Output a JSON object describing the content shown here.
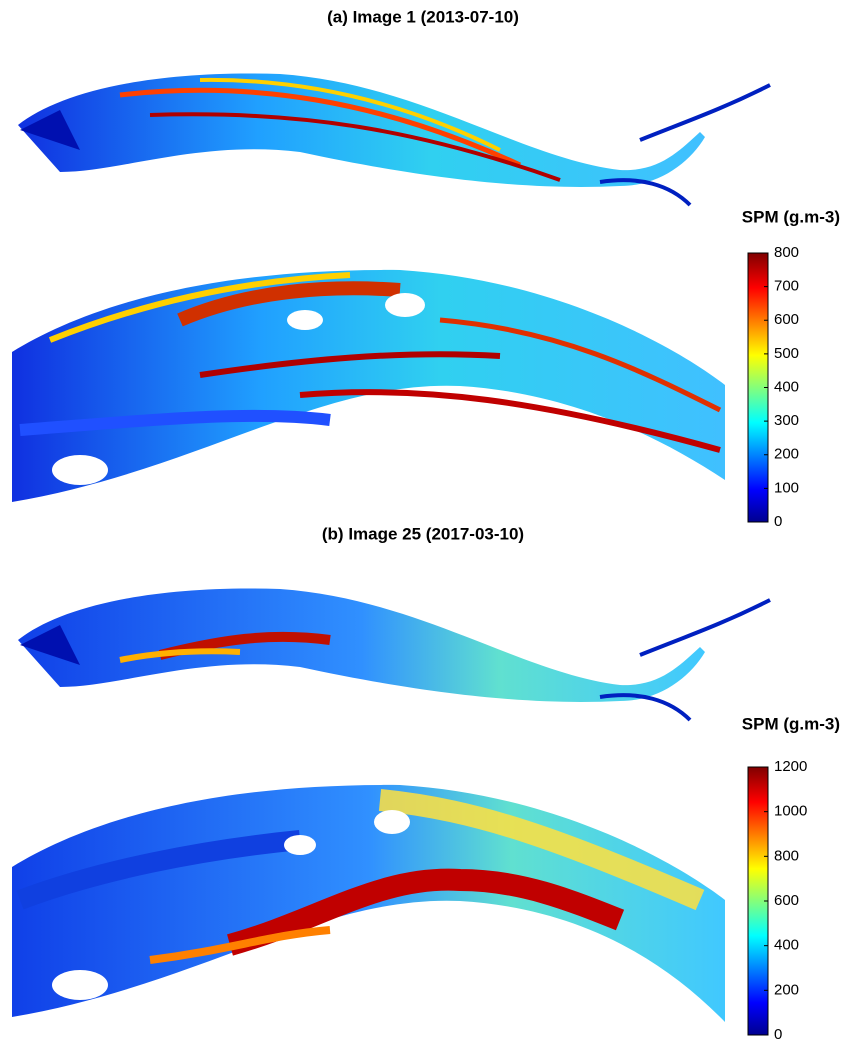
{
  "panels": [
    {
      "title": "(a) Image 1 (2013-07-10)",
      "colorbar": {
        "label": "SPM (g.m-3)",
        "lim": [
          0,
          800
        ],
        "ticks": [
          0,
          100,
          200,
          300,
          400,
          500,
          600,
          700,
          800
        ]
      }
    },
    {
      "title": "(b) Image 25 (2017-03-10)",
      "colorbar": {
        "label": "SPM (g.m-3)",
        "lim": [
          0,
          1200
        ],
        "ticks": [
          0,
          200,
          400,
          600,
          800,
          1000,
          1200
        ]
      }
    }
  ]
}
